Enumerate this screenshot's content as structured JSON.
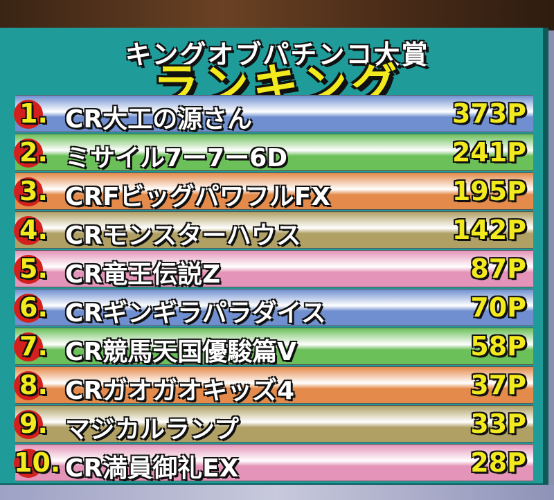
{
  "header": {
    "subtitle": "キングオブパチンコ大賞",
    "title": "ランキング"
  },
  "colors": {
    "panel": "#1f9c9a",
    "title": "#f2ea1c",
    "rank_circle": "#d4201c"
  },
  "ranking": [
    {
      "rank": "1.",
      "name": "CR大工の源さん",
      "points": "373P",
      "color": "#6f8fd0"
    },
    {
      "rank": "2.",
      "name": "ミサイル7ー7ー6D",
      "points": "241P",
      "color": "#6cc05a"
    },
    {
      "rank": "3.",
      "name": "CRFビッグパワフルFX",
      "points": "195P",
      "color": "#e48a4a"
    },
    {
      "rank": "4.",
      "name": "CRモンスターハウス",
      "points": "142P",
      "color": "#b0a064"
    },
    {
      "rank": "5.",
      "name": "CR竜王伝説Z",
      "points": "87P",
      "color": "#e494b8"
    },
    {
      "rank": "6.",
      "name": "CRギンギラパラダイス",
      "points": "70P",
      "color": "#6f8fd0"
    },
    {
      "rank": "7.",
      "name": "CR競馬天国優駿篇V",
      "points": "58P",
      "color": "#6cc05a"
    },
    {
      "rank": "8.",
      "name": "CRガオガオキッズ4",
      "points": "37P",
      "color": "#e48a4a"
    },
    {
      "rank": "9.",
      "name": "マジカルランプ",
      "points": "33P",
      "color": "#b0a064"
    },
    {
      "rank": "10.",
      "name": "CR満員御礼EX",
      "points": "28P",
      "color": "#e494b8"
    }
  ]
}
